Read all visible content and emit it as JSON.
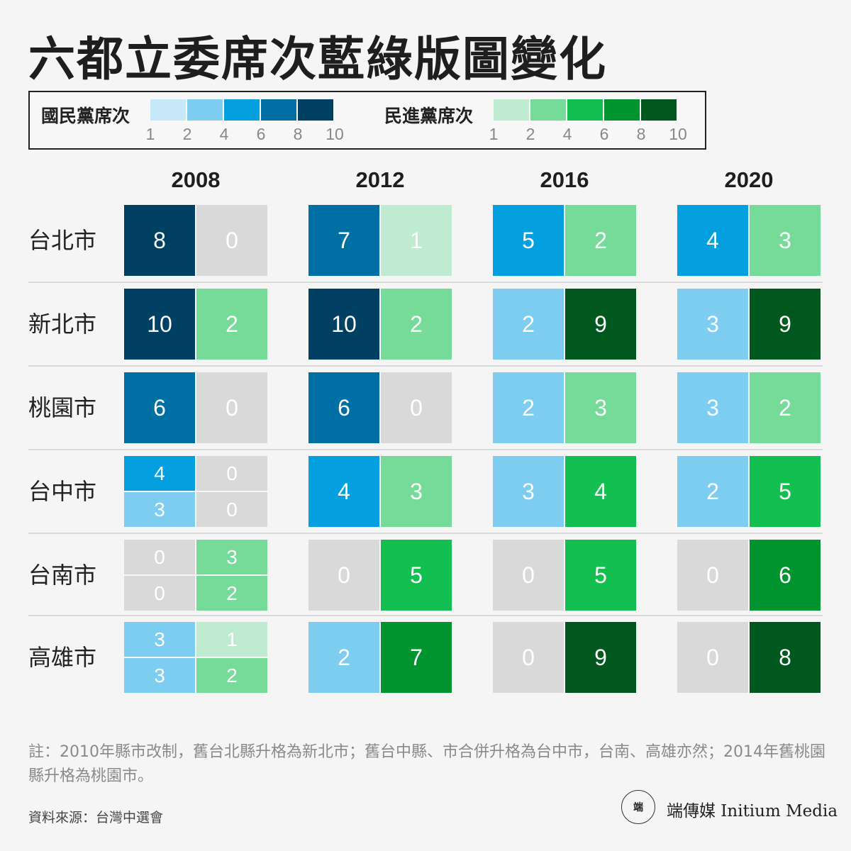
{
  "title": "六都立委席次藍綠版圖變化",
  "legend": {
    "kmt_label": "國民黨席次",
    "dpp_label": "民進黨席次",
    "ticks": [
      "1",
      "2",
      "4",
      "6",
      "8",
      "10"
    ],
    "kmt_colors": [
      "#c7e8f8",
      "#7ccdf0",
      "#039fdf",
      "#006fa3",
      "#004062"
    ],
    "dpp_colors": [
      "#bfebd0",
      "#76db99",
      "#14bf52",
      "#00942f",
      "#00581e"
    ]
  },
  "colors": {
    "zero": "#d9d9d9"
  },
  "chart_data": {
    "type": "table",
    "title": "六都立委席次藍綠版圖變化",
    "years": [
      "2008",
      "2012",
      "2016",
      "2020"
    ],
    "cities": [
      "台北市",
      "新北市",
      "桃園市",
      "台中市",
      "台南市",
      "高雄市"
    ],
    "seats": [
      [
        {
          "kmt": [
            8
          ],
          "dpp": [
            0
          ]
        },
        {
          "kmt": [
            7
          ],
          "dpp": [
            1
          ]
        },
        {
          "kmt": [
            5
          ],
          "dpp": [
            2
          ]
        },
        {
          "kmt": [
            4
          ],
          "dpp": [
            3
          ]
        }
      ],
      [
        {
          "kmt": [
            10
          ],
          "dpp": [
            2
          ]
        },
        {
          "kmt": [
            10
          ],
          "dpp": [
            2
          ]
        },
        {
          "kmt": [
            2
          ],
          "dpp": [
            9
          ]
        },
        {
          "kmt": [
            3
          ],
          "dpp": [
            9
          ]
        }
      ],
      [
        {
          "kmt": [
            6
          ],
          "dpp": [
            0
          ]
        },
        {
          "kmt": [
            6
          ],
          "dpp": [
            0
          ]
        },
        {
          "kmt": [
            2
          ],
          "dpp": [
            3
          ]
        },
        {
          "kmt": [
            3
          ],
          "dpp": [
            2
          ]
        }
      ],
      [
        {
          "kmt": [
            4,
            3
          ],
          "dpp": [
            0,
            0
          ]
        },
        {
          "kmt": [
            4
          ],
          "dpp": [
            3
          ]
        },
        {
          "kmt": [
            3
          ],
          "dpp": [
            4
          ]
        },
        {
          "kmt": [
            2
          ],
          "dpp": [
            5
          ]
        }
      ],
      [
        {
          "kmt": [
            0,
            0
          ],
          "dpp": [
            3,
            2
          ]
        },
        {
          "kmt": [
            0
          ],
          "dpp": [
            5
          ]
        },
        {
          "kmt": [
            0
          ],
          "dpp": [
            5
          ]
        },
        {
          "kmt": [
            0
          ],
          "dpp": [
            6
          ]
        }
      ],
      [
        {
          "kmt": [
            3,
            3
          ],
          "dpp": [
            1,
            2
          ]
        },
        {
          "kmt": [
            2
          ],
          "dpp": [
            7
          ]
        },
        {
          "kmt": [
            0
          ],
          "dpp": [
            9
          ]
        },
        {
          "kmt": [
            0
          ],
          "dpp": [
            8
          ]
        }
      ]
    ]
  },
  "note": "註：2010年縣市改制，舊台北縣升格為新北市；舊台中縣、市合併升格為台中市，台南、高雄亦然；2014年舊桃園縣升格為桃園市。",
  "source": "資料來源：台灣中選會",
  "brand": {
    "logo_mark": "端",
    "name": "端傳媒 Initium Media"
  }
}
